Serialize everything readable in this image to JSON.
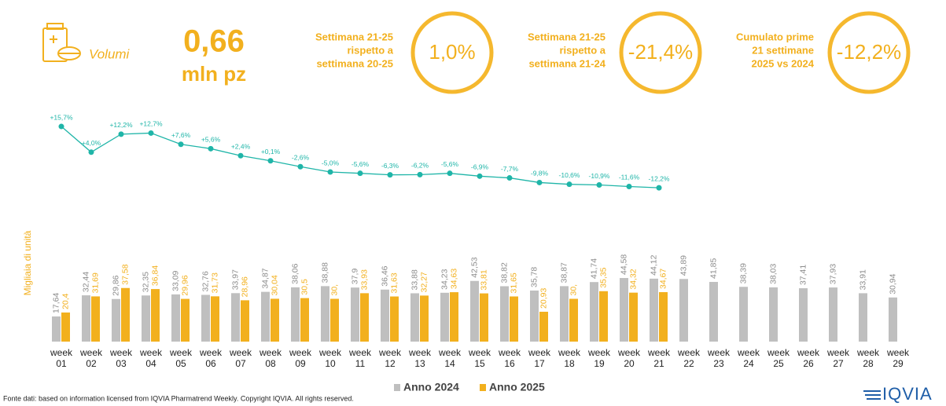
{
  "header": {
    "label": "Volumi",
    "value": "0,66",
    "unit": "mln pz"
  },
  "kpis": [
    {
      "lines": [
        "Settimana 21-25",
        "rispetto a",
        "settimana 20-25"
      ],
      "value": "1,0%"
    },
    {
      "lines": [
        "Settimana 21-25",
        "rispetto a",
        "settimana 21-24"
      ],
      "value": "-21,4%"
    },
    {
      "lines": [
        "Cumulato prime",
        "21 settimane",
        "2025 vs 2024"
      ],
      "value": "-12,2%"
    }
  ],
  "chart_data": {
    "type": "bar",
    "y_label": "Migliaia di unità",
    "categories": [
      "week 01",
      "week 02",
      "week 03",
      "week 04",
      "week 05",
      "week 06",
      "week 07",
      "week 08",
      "week 09",
      "week 10",
      "week 11",
      "week 12",
      "week 13",
      "week 14",
      "week 15",
      "week 16",
      "week 17",
      "week 18",
      "week 19",
      "week 20",
      "week 21",
      "week 22",
      "week 23",
      "week 24",
      "week 25",
      "week 26",
      "week 27",
      "week 28",
      "week 29"
    ],
    "ylim": [
      0,
      60
    ],
    "y2lim": [
      -20,
      20
    ],
    "series": [
      {
        "name": "Anno 2024",
        "color": "#bfbfbf",
        "values": [
          17.64,
          32.44,
          29.86,
          32.35,
          33.09,
          32.76,
          33.97,
          34.87,
          38.06,
          38.88,
          37.9,
          36.46,
          33.88,
          34.23,
          42.53,
          38.82,
          35.78,
          38.87,
          41.74,
          44.58,
          44.12,
          43.89,
          41.85,
          38.39,
          38.03,
          37.41,
          37.93,
          33.91,
          30.94
        ],
        "value_labels": [
          "17,64",
          "32,44",
          "29,86",
          "32,35",
          "33,09",
          "32,76",
          "33,97",
          "34,87",
          "38,06",
          "38,88",
          "37,9",
          "36,46",
          "33,88",
          "34,23",
          "42,53",
          "38,82",
          "35,78",
          "38,87",
          "41,74",
          "44,58",
          "44,12",
          "43,89",
          "41,85",
          "38,39",
          "38,03",
          "37,41",
          "37,93",
          "33,91",
          "30,94"
        ]
      },
      {
        "name": "Anno 2025",
        "color": "#f2b01e",
        "values": [
          20.4,
          31.69,
          37.58,
          36.84,
          29.96,
          31.73,
          28.96,
          30.04,
          30.5,
          30,
          33.93,
          31.63,
          32.27,
          34.63,
          33.81,
          31.65,
          20.93,
          30,
          35.35,
          34.32,
          34.67,
          null,
          null,
          null,
          null,
          null,
          null,
          null,
          null
        ],
        "value_labels": [
          "20,4",
          "31,69",
          "37,58",
          "36,84",
          "29,96",
          "31,73",
          "28,96",
          "30,04",
          "30,5",
          "30,",
          "33,93",
          "31,63",
          "32,27",
          "34,63",
          "33,81",
          "31,65",
          "20,93",
          "30,",
          "35,35",
          "34,32",
          "34,67",
          null,
          null,
          null,
          null,
          null,
          null,
          null,
          null
        ]
      },
      {
        "type": "line",
        "axis": "y2",
        "color": "#1fb5a8",
        "values": [
          15.7,
          4.0,
          12.2,
          12.7,
          7.6,
          5.6,
          2.4,
          0.1,
          -2.6,
          -5.0,
          -5.6,
          -6.3,
          -6.2,
          -5.6,
          -6.9,
          -7.7,
          -9.8,
          -10.6,
          -10.9,
          -11.6,
          -12.2,
          null,
          null,
          null,
          null,
          null,
          null,
          null,
          null
        ],
        "value_labels": [
          "+15,7%",
          "+4,0%",
          "+12,2%",
          "+12,7%",
          "+7,6%",
          "+5,6%",
          "+2,4%",
          "+0,1%",
          "-2,6%",
          "-5,0%",
          "-5,6%",
          "-6,3%",
          "-6,2%",
          "-5,6%",
          "-6,9%",
          "-7,7%",
          "-9,8%",
          "-10,6%",
          "-10,9%",
          "-11,6%",
          "-12,2%",
          null,
          null,
          null,
          null,
          null,
          null,
          null,
          null
        ]
      }
    ]
  },
  "footer": {
    "source": "Fonte dati: based on information licensed from IQVIA Pharmatrend Weekly. Copyright IQVIA. All rights reserved.",
    "logo": "IQVIA"
  }
}
